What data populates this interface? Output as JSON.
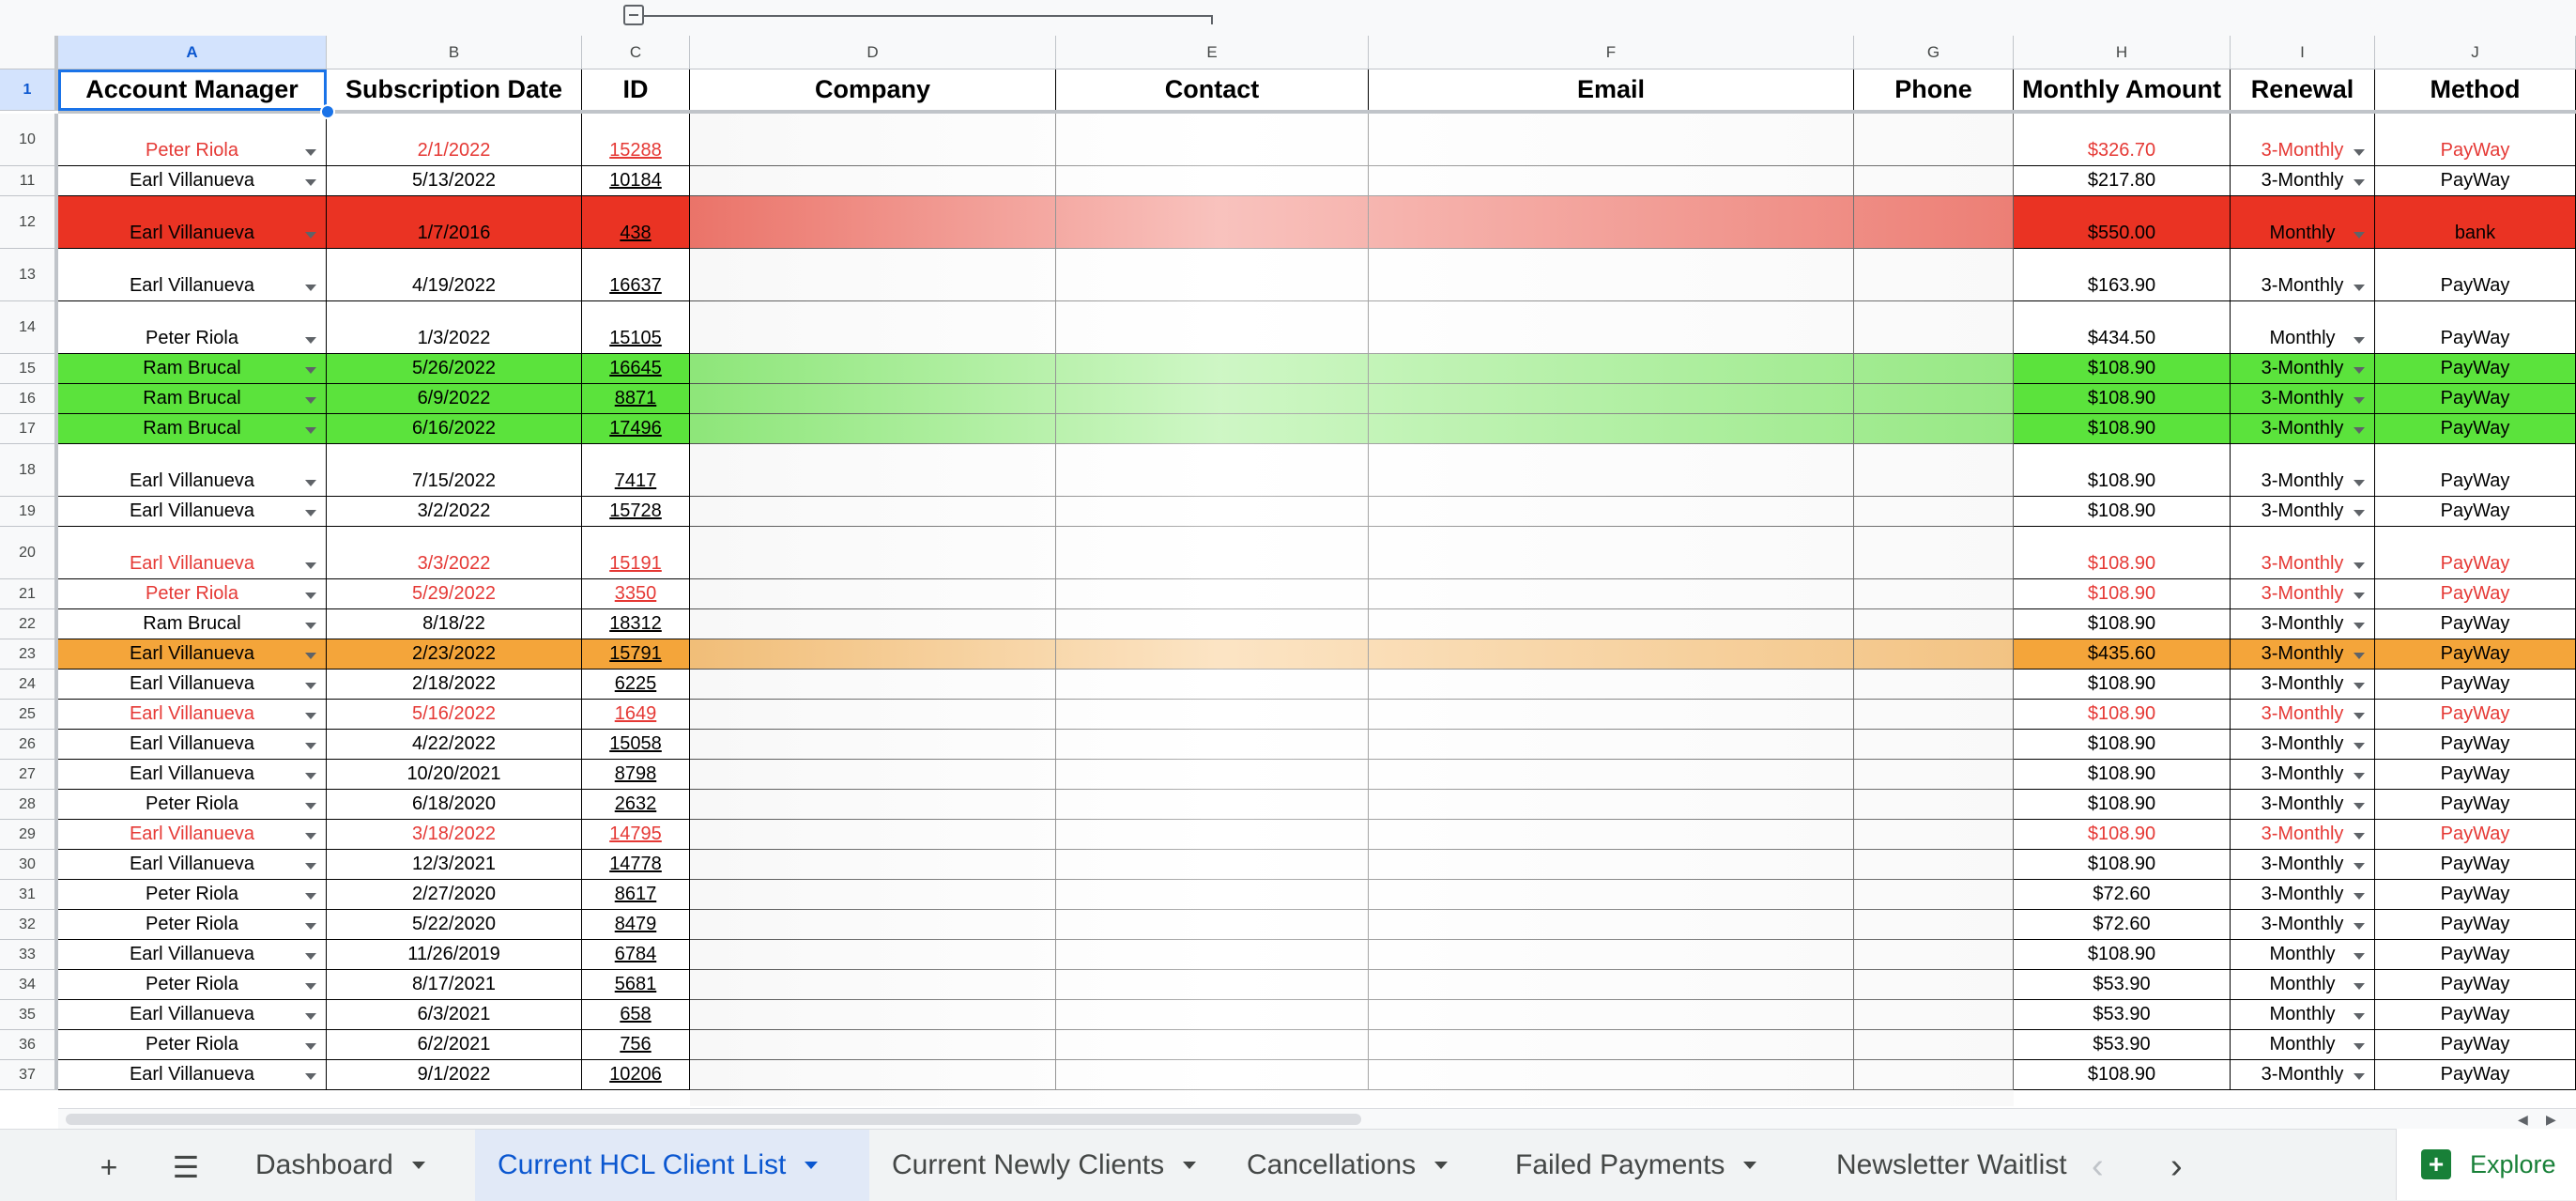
{
  "columns": [
    {
      "letter": "A",
      "title": "Account Manager"
    },
    {
      "letter": "B",
      "title": "Subscription Date"
    },
    {
      "letter": "C",
      "title": "ID"
    },
    {
      "letter": "D",
      "title": "Company"
    },
    {
      "letter": "E",
      "title": "Contact"
    },
    {
      "letter": "F",
      "title": "Email"
    },
    {
      "letter": "G",
      "title": "Phone"
    },
    {
      "letter": "H",
      "title": "Monthly Amount"
    },
    {
      "letter": "I",
      "title": "Renewal"
    },
    {
      "letter": "J",
      "title": "Method"
    }
  ],
  "header_row_number": "1",
  "rows": [
    {
      "num": "10",
      "manager": "Peter Riola",
      "date": "2/1/2022",
      "id": "15288",
      "amount": "$326.70",
      "renewal": "3-Monthly",
      "method": "PayWay",
      "text_color": "#e53935",
      "fill": "#ffffff",
      "tall": true
    },
    {
      "num": "11",
      "manager": "Earl Villanueva",
      "date": "5/13/2022",
      "id": "10184",
      "amount": "$217.80",
      "renewal": "3-Monthly",
      "method": "PayWay",
      "text_color": "#000000",
      "fill": "#ffffff",
      "tall": false
    },
    {
      "num": "12",
      "manager": "Earl Villanueva",
      "date": "1/7/2016",
      "id": "438",
      "amount": "$550.00",
      "renewal": "Monthly",
      "method": "bank",
      "text_color": "#000000",
      "fill": "#ea3323",
      "tall": true
    },
    {
      "num": "13",
      "manager": "Earl Villanueva",
      "date": "4/19/2022",
      "id": "16637",
      "amount": "$163.90",
      "renewal": "3-Monthly",
      "method": "PayWay",
      "text_color": "#000000",
      "fill": "#ffffff",
      "tall": true
    },
    {
      "num": "14",
      "manager": "Peter Riola",
      "date": "1/3/2022",
      "id": "15105",
      "amount": "$434.50",
      "renewal": "Monthly",
      "method": "PayWay",
      "text_color": "#000000",
      "fill": "#ffffff",
      "tall": true
    },
    {
      "num": "15",
      "manager": "Ram Brucal",
      "date": "5/26/2022",
      "id": "16645",
      "amount": "$108.90",
      "renewal": "3-Monthly",
      "method": "PayWay",
      "text_color": "#000000",
      "fill": "#5be33c",
      "tall": false
    },
    {
      "num": "16",
      "manager": "Ram Brucal",
      "date": "6/9/2022",
      "id": "8871",
      "amount": "$108.90",
      "renewal": "3-Monthly",
      "method": "PayWay",
      "text_color": "#000000",
      "fill": "#5be33c",
      "tall": false
    },
    {
      "num": "17",
      "manager": "Ram Brucal",
      "date": "6/16/2022",
      "id": "17496",
      "amount": "$108.90",
      "renewal": "3-Monthly",
      "method": "PayWay",
      "text_color": "#000000",
      "fill": "#5be33c",
      "tall": false
    },
    {
      "num": "18",
      "manager": "Earl Villanueva",
      "date": "7/15/2022",
      "id": "7417",
      "amount": "$108.90",
      "renewal": "3-Monthly",
      "method": "PayWay",
      "text_color": "#000000",
      "fill": "#ffffff",
      "tall": true
    },
    {
      "num": "19",
      "manager": "Earl Villanueva",
      "date": "3/2/2022",
      "id": "15728",
      "amount": "$108.90",
      "renewal": "3-Monthly",
      "method": "PayWay",
      "text_color": "#000000",
      "fill": "#ffffff",
      "tall": false
    },
    {
      "num": "20",
      "manager": "Earl Villanueva",
      "date": "3/3/2022",
      "id": "15191",
      "amount": "$108.90",
      "renewal": "3-Monthly",
      "method": "PayWay",
      "text_color": "#e53935",
      "fill": "#ffffff",
      "tall": true
    },
    {
      "num": "21",
      "manager": "Peter Riola",
      "date": "5/29/2022",
      "id": "3350",
      "amount": "$108.90",
      "renewal": "3-Monthly",
      "method": "PayWay",
      "text_color": "#e53935",
      "fill": "#ffffff",
      "tall": false
    },
    {
      "num": "22",
      "manager": "Ram Brucal",
      "date": "8/18/22",
      "id": "18312",
      "amount": "$108.90",
      "renewal": "3-Monthly",
      "method": "PayWay",
      "text_color": "#000000",
      "fill": "#ffffff",
      "tall": false
    },
    {
      "num": "23",
      "manager": "Earl Villanueva",
      "date": "2/23/2022",
      "id": "15791",
      "amount": "$435.60",
      "renewal": "3-Monthly",
      "method": "PayWay",
      "text_color": "#000000",
      "fill": "#f4a53a",
      "tall": false
    },
    {
      "num": "24",
      "manager": "Earl Villanueva",
      "date": "2/18/2022",
      "id": "6225",
      "amount": "$108.90",
      "renewal": "3-Monthly",
      "method": "PayWay",
      "text_color": "#000000",
      "fill": "#ffffff",
      "tall": false
    },
    {
      "num": "25",
      "manager": "Earl Villanueva",
      "date": "5/16/2022",
      "id": "1649",
      "amount": "$108.90",
      "renewal": "3-Monthly",
      "method": "PayWay",
      "text_color": "#e53935",
      "fill": "#ffffff",
      "tall": false
    },
    {
      "num": "26",
      "manager": "Earl Villanueva",
      "date": "4/22/2022",
      "id": "15058",
      "amount": "$108.90",
      "renewal": "3-Monthly",
      "method": "PayWay",
      "text_color": "#000000",
      "fill": "#ffffff",
      "tall": false
    },
    {
      "num": "27",
      "manager": "Earl Villanueva",
      "date": "10/20/2021",
      "id": "8798",
      "amount": "$108.90",
      "renewal": "3-Monthly",
      "method": "PayWay",
      "text_color": "#000000",
      "fill": "#ffffff",
      "tall": false
    },
    {
      "num": "28",
      "manager": "Peter Riola",
      "date": "6/18/2020",
      "id": "2632",
      "amount": "$108.90",
      "renewal": "3-Monthly",
      "method": "PayWay",
      "text_color": "#000000",
      "fill": "#ffffff",
      "tall": false
    },
    {
      "num": "29",
      "manager": "Earl Villanueva",
      "date": "3/18/2022",
      "id": "14795",
      "amount": "$108.90",
      "renewal": "3-Monthly",
      "method": "PayWay",
      "text_color": "#e53935",
      "fill": "#ffffff",
      "tall": false
    },
    {
      "num": "30",
      "manager": "Earl Villanueva",
      "date": "12/3/2021",
      "id": "14778",
      "amount": "$108.90",
      "renewal": "3-Monthly",
      "method": "PayWay",
      "text_color": "#000000",
      "fill": "#ffffff",
      "tall": false
    },
    {
      "num": "31",
      "manager": "Peter Riola",
      "date": "2/27/2020",
      "id": "8617",
      "amount": "$72.60",
      "renewal": "3-Monthly",
      "method": "PayWay",
      "text_color": "#000000",
      "fill": "#ffffff",
      "tall": false
    },
    {
      "num": "32",
      "manager": "Peter Riola",
      "date": "5/22/2020",
      "id": "8479",
      "amount": "$72.60",
      "renewal": "3-Monthly",
      "method": "PayWay",
      "text_color": "#000000",
      "fill": "#ffffff",
      "tall": false
    },
    {
      "num": "33",
      "manager": "Earl Villanueva",
      "date": "11/26/2019",
      "id": "6784",
      "amount": "$108.90",
      "renewal": "Monthly",
      "method": "PayWay",
      "text_color": "#000000",
      "fill": "#ffffff",
      "tall": false
    },
    {
      "num": "34",
      "manager": "Peter Riola",
      "date": "8/17/2021",
      "id": "5681",
      "amount": "$53.90",
      "renewal": "Monthly",
      "method": "PayWay",
      "text_color": "#000000",
      "fill": "#ffffff",
      "tall": false
    },
    {
      "num": "35",
      "manager": "Earl Villanueva",
      "date": "6/3/2021",
      "id": "658",
      "amount": "$53.90",
      "renewal": "Monthly",
      "method": "PayWay",
      "text_color": "#000000",
      "fill": "#ffffff",
      "tall": false
    },
    {
      "num": "36",
      "manager": "Peter Riola",
      "date": "6/2/2021",
      "id": "756",
      "amount": "$53.90",
      "renewal": "Monthly",
      "method": "PayWay",
      "text_color": "#000000",
      "fill": "#ffffff",
      "tall": false
    },
    {
      "num": "37",
      "manager": "Earl Villanueva",
      "date": "9/1/2022",
      "id": "10206",
      "amount": "$108.90",
      "renewal": "3-Monthly",
      "method": "PayWay",
      "text_color": "#000000",
      "fill": "#ffffff",
      "tall": false
    }
  ],
  "tabs": [
    {
      "label": "Dashboard",
      "active": false
    },
    {
      "label": "Current HCL Client List",
      "active": true
    },
    {
      "label": "Current Newly Clients",
      "active": false
    },
    {
      "label": "Cancellations",
      "active": false
    },
    {
      "label": "Failed Payments",
      "active": false
    },
    {
      "label": "Newsletter Waitlist",
      "active": false
    }
  ],
  "explore_label": "Explore",
  "colors": {
    "accent": "#0b57d0",
    "selection": "#1a73e8",
    "red_text": "#e53935",
    "red_fill": "#ea3323",
    "green_fill": "#5be33c",
    "orange_fill": "#f4a53a",
    "explore_green": "#188038"
  },
  "icons": {
    "add_sheet": "plus-icon",
    "all_sheets": "menu-icon",
    "scroll_left": "chevron-left-icon",
    "scroll_right": "chevron-right-icon",
    "explore": "explore-icon"
  }
}
